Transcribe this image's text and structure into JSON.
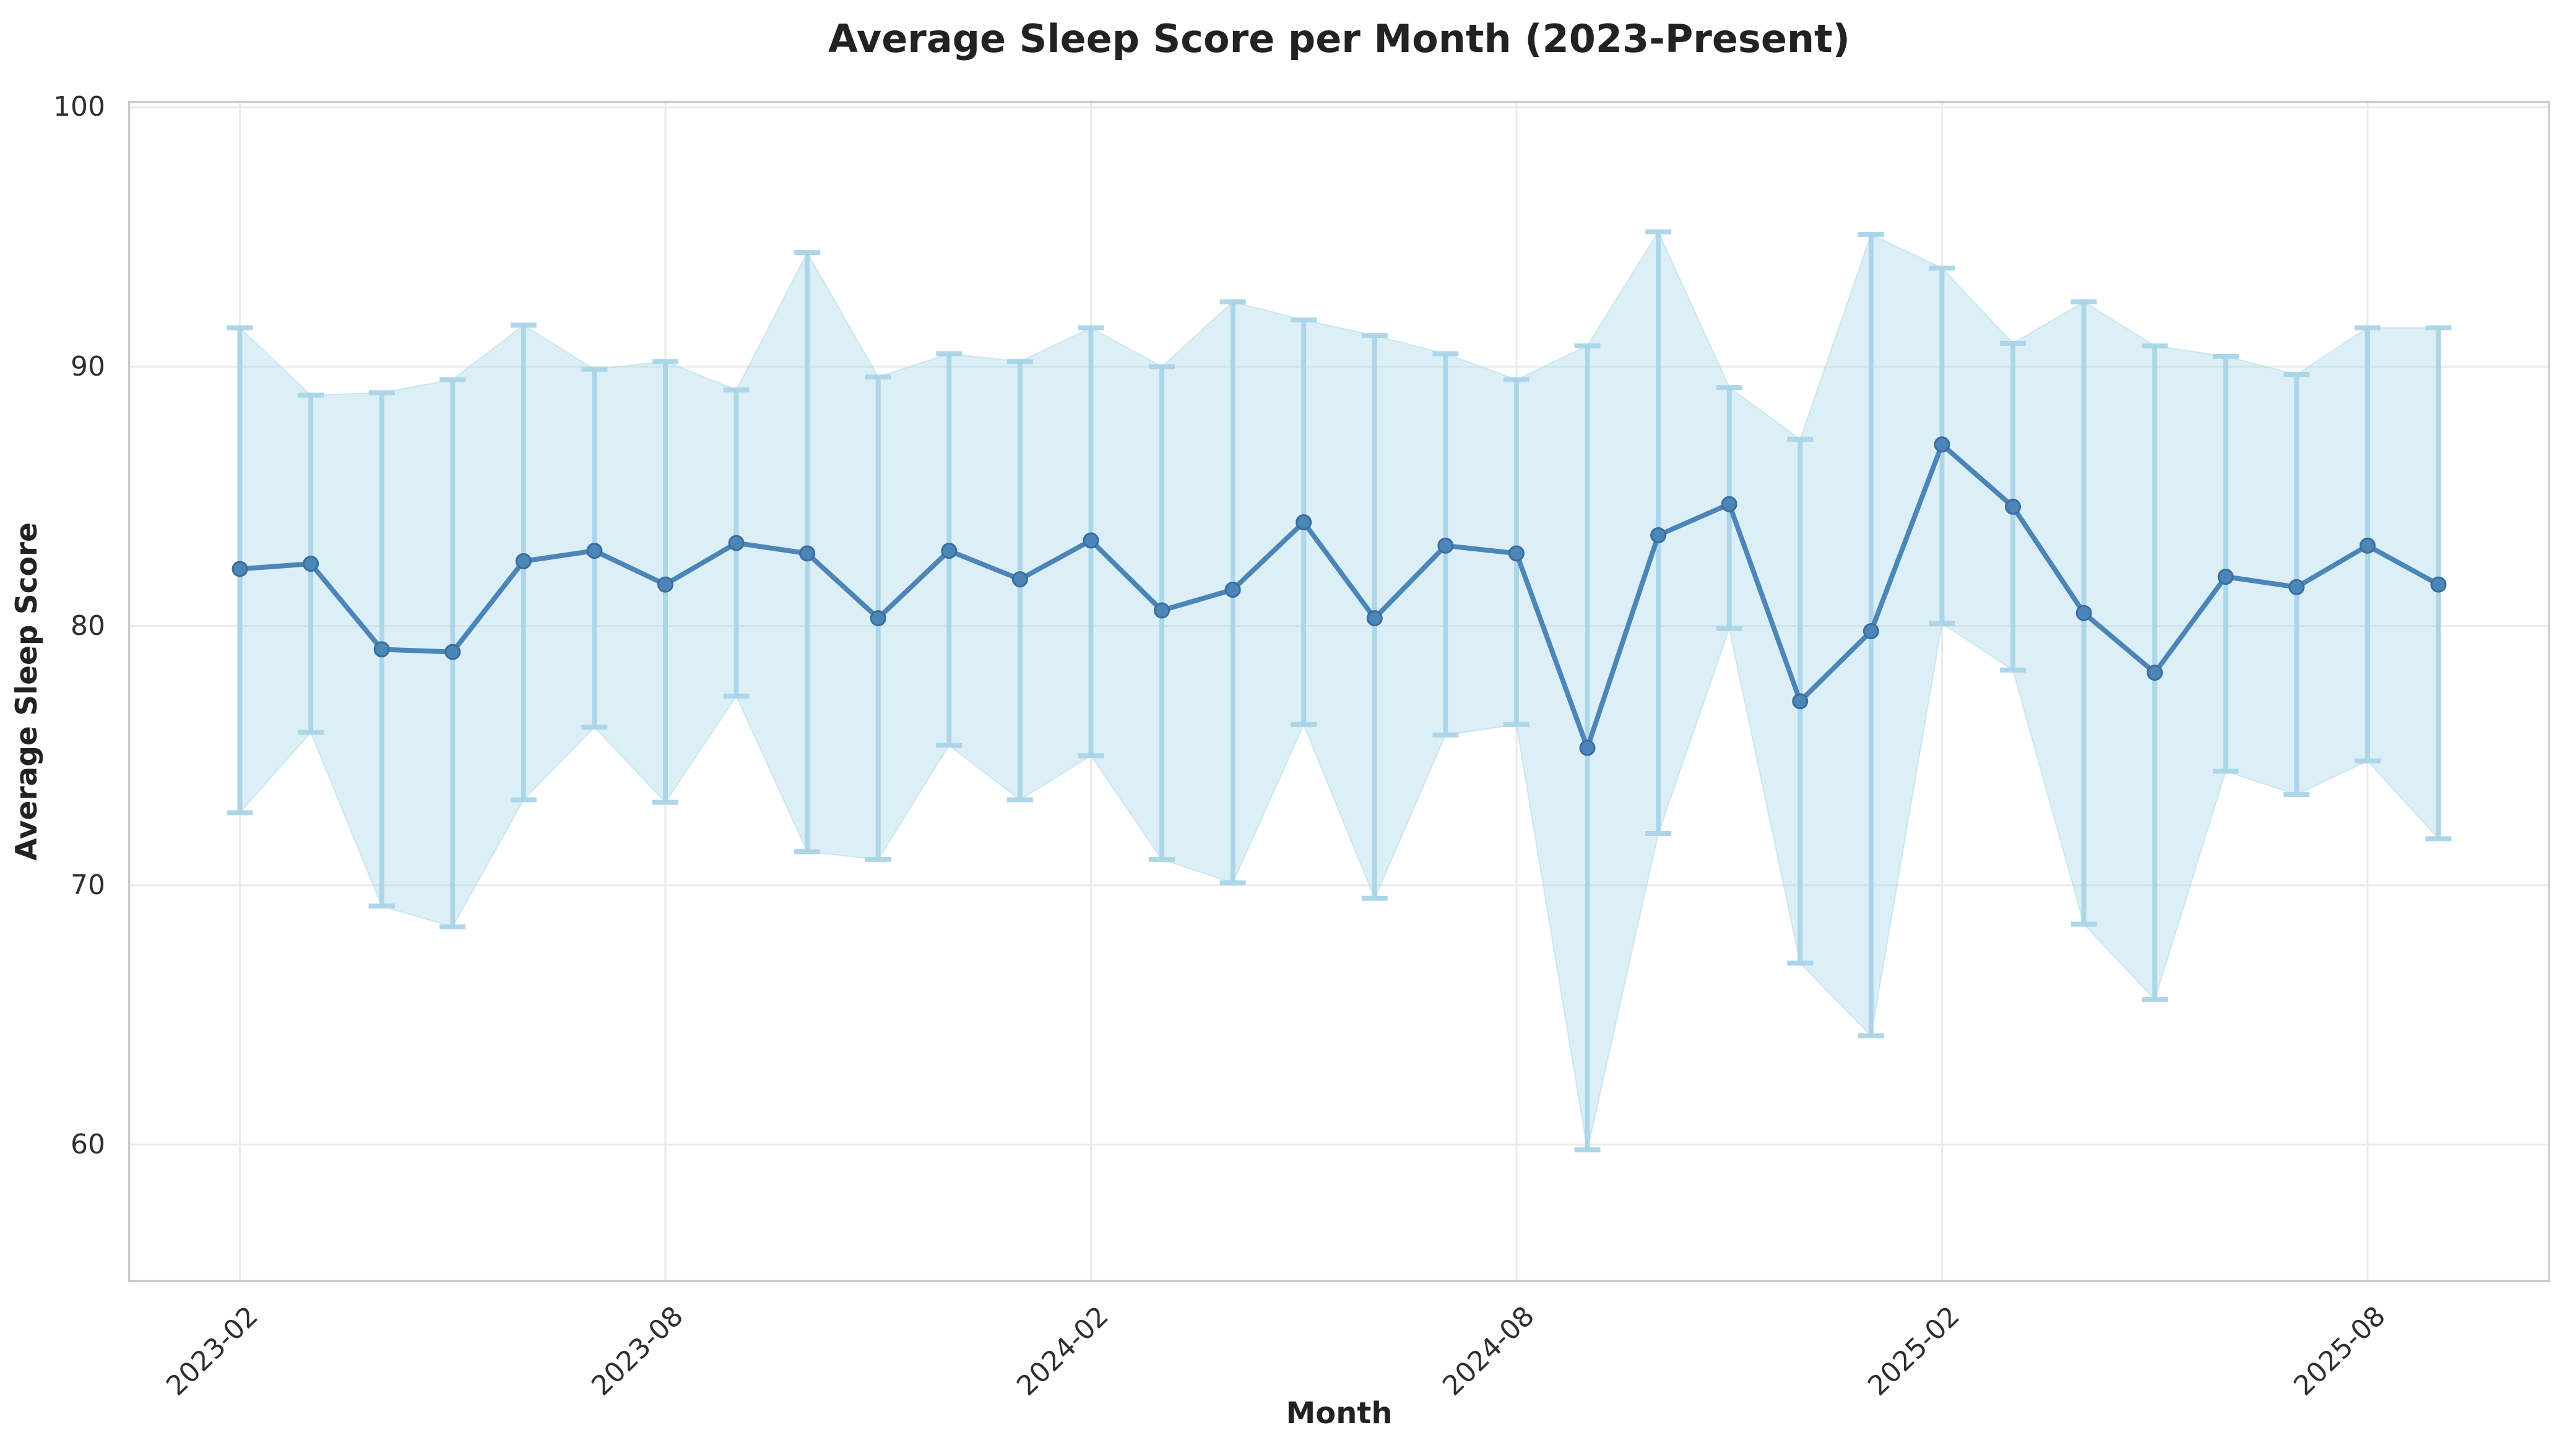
{
  "figure": {
    "title": "Average Sleep Score per Month (2023-Present)"
  },
  "chart_data": {
    "type": "line",
    "title": "Average Sleep Score per Month (2023-Present)",
    "xlabel": "Month",
    "ylabel": "Average Sleep Score",
    "x": [
      "2023-02",
      "2023-03",
      "2023-04",
      "2023-05",
      "2023-06",
      "2023-07",
      "2023-08",
      "2023-09",
      "2023-10",
      "2023-11",
      "2023-12",
      "2024-01",
      "2024-02",
      "2024-03",
      "2024-04",
      "2024-05",
      "2024-06",
      "2024-07",
      "2024-08",
      "2024-09",
      "2024-10",
      "2024-11",
      "2024-12",
      "2025-01",
      "2025-02",
      "2025-03",
      "2025-04",
      "2025-05",
      "2025-06",
      "2025-07",
      "2025-08",
      "2025-09"
    ],
    "series": [
      {
        "name": "average sleep score",
        "values": [
          82.2,
          82.4,
          79.1,
          79.0,
          82.5,
          82.9,
          81.6,
          83.2,
          82.8,
          80.3,
          82.9,
          81.8,
          83.3,
          80.6,
          81.4,
          84.0,
          80.3,
          83.1,
          82.8,
          75.3,
          83.5,
          84.7,
          77.1,
          79.8,
          87.0,
          84.6,
          80.5,
          78.2,
          81.9,
          81.5,
          83.1,
          81.6
        ]
      }
    ],
    "error_band_upper": [
      91.5,
      88.9,
      89.0,
      89.5,
      91.6,
      89.9,
      90.2,
      89.1,
      94.4,
      89.6,
      90.5,
      90.2,
      91.5,
      90.0,
      92.5,
      91.8,
      91.2,
      90.5,
      89.5,
      90.8,
      95.2,
      89.2,
      87.2,
      95.1,
      93.8,
      90.9,
      92.5,
      90.8,
      90.4,
      89.7,
      91.5,
      91.5
    ],
    "error_band_lower": [
      72.8,
      75.9,
      69.2,
      68.4,
      73.3,
      76.1,
      73.2,
      77.3,
      71.3,
      71.0,
      75.4,
      73.3,
      75.0,
      71.0,
      70.1,
      76.2,
      69.5,
      75.8,
      76.2,
      59.8,
      72.0,
      79.9,
      67.0,
      64.2,
      80.1,
      78.3,
      68.5,
      65.6,
      74.4,
      73.5,
      74.8,
      71.8
    ],
    "ylim": [
      54.7,
      100.25
    ],
    "yticks": [
      60,
      70,
      80,
      90,
      100
    ],
    "xtick_labels": [
      "2023-02",
      "2023-08",
      "2024-02",
      "2024-08",
      "2025-02",
      "2025-08"
    ],
    "xtick_indices": [
      0,
      6,
      12,
      18,
      24,
      30
    ],
    "grid": true,
    "legend": false,
    "colors": {
      "line": "#4C86B8",
      "marker": "#4C86B8",
      "marker_edge": "#3A6DA0",
      "error_bar": "#A9D4E8",
      "band": "#AED8EA",
      "grid": "#EAEAEA",
      "spine": "#C9C9C9",
      "text": "#222222",
      "tick_text": "#2E2E2E",
      "background": "#FFFFFF"
    }
  }
}
